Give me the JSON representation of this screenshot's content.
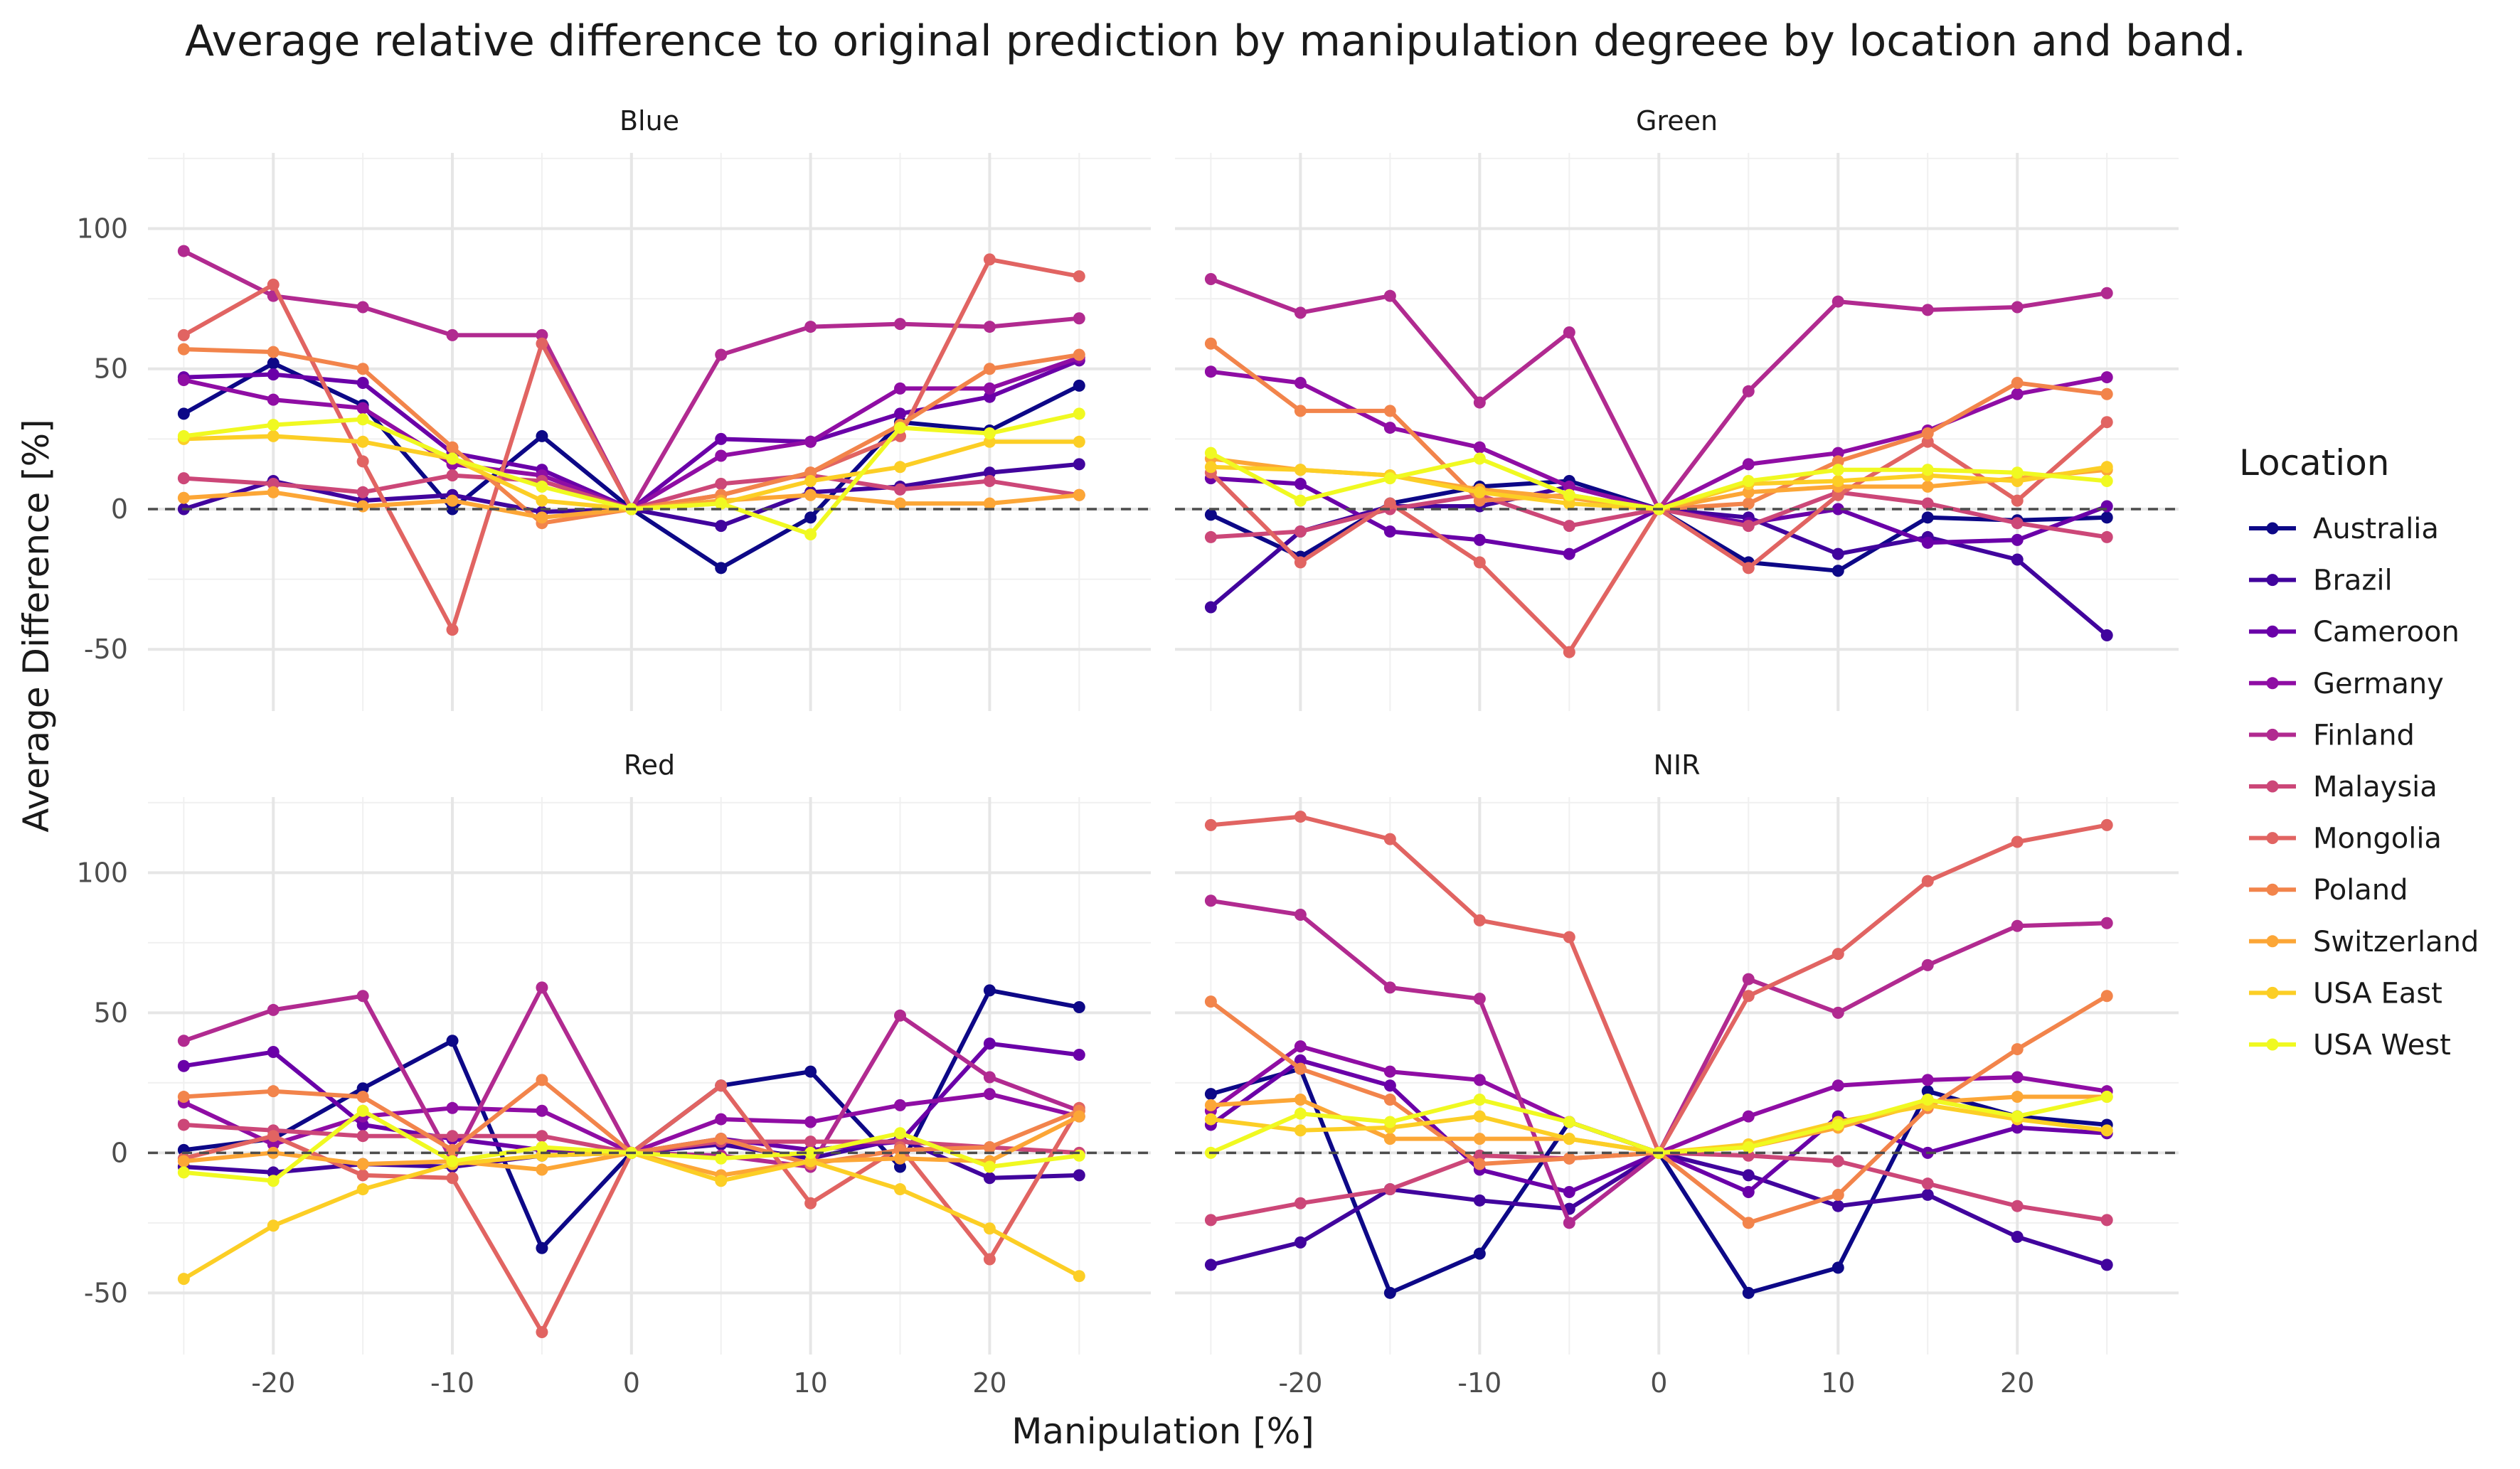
{
  "chart_data": {
    "type": "line",
    "title": "Average relative difference to original prediction by manipulation degreee by location and band.",
    "xlabel": "Manipulation [%]",
    "ylabel": "Average Difference [%]",
    "xlim": [
      -27,
      29
    ],
    "ylim": [
      -72,
      127
    ],
    "x": [
      -25,
      -20,
      -15,
      -10,
      -5,
      0,
      5,
      10,
      15,
      20,
      25
    ],
    "x_ticks": [
      -20,
      -10,
      0,
      10,
      20
    ],
    "x_tick_labels": [
      "-20",
      "-10",
      "0",
      "10",
      "20"
    ],
    "y_ticks": [
      100,
      50,
      0,
      -50
    ],
    "y_tick_labels": [
      "100",
      "50",
      "0",
      "-50"
    ],
    "reference_line": 0,
    "grid": true,
    "legend_title": "Location",
    "legend_position": "right",
    "locations": [
      "Australia",
      "Brazil",
      "Cameroon",
      "Germany",
      "Finland",
      "Malaysia",
      "Mongolia",
      "Poland",
      "Switzerland",
      "USA East",
      "USA West"
    ],
    "colors": [
      "#0d0887",
      "#41049d",
      "#6a00a8",
      "#8f0da4",
      "#b12a90",
      "#cc4778",
      "#e16462",
      "#f2844b",
      "#fca636",
      "#fcce25",
      "#f0f921"
    ],
    "facets": [
      {
        "name": "Blue",
        "series": [
          {
            "name": "Australia",
            "values": [
              34,
              52,
              37,
              0,
              26,
              0,
              -21,
              -3,
              31,
              28,
              44
            ]
          },
          {
            "name": "Brazil",
            "values": [
              0,
              10,
              3,
              5,
              -1,
              0,
              -6,
              6,
              8,
              13,
              16
            ]
          },
          {
            "name": "Cameroon",
            "values": [
              47,
              48,
              45,
              20,
              14,
              0,
              25,
              24,
              34,
              40,
              53
            ]
          },
          {
            "name": "Germany",
            "values": [
              46,
              39,
              36,
              16,
              12,
              0,
              19,
              24,
              43,
              43,
              54
            ]
          },
          {
            "name": "Finland",
            "values": [
              92,
              76,
              72,
              62,
              62,
              0,
              55,
              65,
              66,
              65,
              68
            ]
          },
          {
            "name": "Malaysia",
            "values": [
              11,
              9,
              6,
              12,
              10,
              0,
              9,
              12,
              7,
              10,
              5
            ]
          },
          {
            "name": "Mongolia",
            "values": [
              62,
              80,
              17,
              -43,
              59,
              0,
              5,
              13,
              26,
              89,
              83
            ]
          },
          {
            "name": "Poland",
            "values": [
              57,
              56,
              50,
              22,
              -5,
              0,
              5,
              13,
              30,
              50,
              55
            ]
          },
          {
            "name": "Switzerland",
            "values": [
              4,
              6,
              1,
              3,
              -3,
              0,
              3,
              5,
              2,
              2,
              5
            ]
          },
          {
            "name": "USA East",
            "values": [
              25,
              26,
              24,
              18,
              3,
              0,
              2,
              10,
              15,
              24,
              24
            ]
          },
          {
            "name": "USA West",
            "values": [
              26,
              30,
              32,
              18,
              8,
              0,
              2,
              -9,
              29,
              27,
              34
            ]
          }
        ]
      },
      {
        "name": "Green",
        "series": [
          {
            "name": "Australia",
            "values": [
              -2,
              -17,
              2,
              8,
              10,
              0,
              -19,
              -22,
              -3,
              -4,
              -3
            ]
          },
          {
            "name": "Brazil",
            "values": [
              -35,
              -8,
              1,
              1,
              8,
              0,
              -3,
              -16,
              -10,
              -18,
              -45
            ]
          },
          {
            "name": "Cameroon",
            "values": [
              11,
              9,
              -8,
              -11,
              -16,
              0,
              -5,
              0,
              -12,
              -11,
              1
            ]
          },
          {
            "name": "Germany",
            "values": [
              49,
              45,
              29,
              22,
              8,
              0,
              16,
              20,
              28,
              41,
              47
            ]
          },
          {
            "name": "Finland",
            "values": [
              82,
              70,
              76,
              38,
              63,
              0,
              42,
              74,
              71,
              72,
              77
            ]
          },
          {
            "name": "Malaysia",
            "values": [
              -10,
              -8,
              0,
              5,
              -6,
              0,
              -6,
              6,
              2,
              -5,
              -10
            ]
          },
          {
            "name": "Mongolia",
            "values": [
              13,
              -19,
              2,
              -19,
              -51,
              0,
              -21,
              5,
              24,
              3,
              31
            ]
          },
          {
            "name": "Poland",
            "values": [
              59,
              35,
              35,
              3,
              5,
              0,
              2,
              17,
              27,
              45,
              41
            ]
          },
          {
            "name": "Switzerland",
            "values": [
              18,
              14,
              12,
              7,
              4,
              0,
              6,
              8,
              8,
              11,
              14
            ]
          },
          {
            "name": "USA East",
            "values": [
              15,
              14,
              12,
              6,
              2,
              0,
              9,
              10,
              12,
              10,
              15
            ]
          },
          {
            "name": "USA West",
            "values": [
              20,
              3,
              11,
              18,
              5,
              0,
              10,
              14,
              14,
              13,
              10
            ]
          }
        ]
      },
      {
        "name": "Red",
        "series": [
          {
            "name": "Australia",
            "values": [
              1,
              5,
              23,
              40,
              -34,
              0,
              24,
              29,
              -5,
              58,
              52
            ]
          },
          {
            "name": "Brazil",
            "values": [
              -5,
              -7,
              -4,
              -5,
              -1,
              0,
              3,
              -2,
              5,
              -9,
              -8
            ]
          },
          {
            "name": "Cameroon",
            "values": [
              31,
              36,
              10,
              5,
              1,
              0,
              5,
              1,
              4,
              39,
              35
            ]
          },
          {
            "name": "Germany",
            "values": [
              18,
              3,
              13,
              16,
              15,
              0,
              12,
              11,
              17,
              21,
              13
            ]
          },
          {
            "name": "Finland",
            "values": [
              40,
              51,
              56,
              -3,
              59,
              0,
              -1,
              -5,
              49,
              27,
              15
            ]
          },
          {
            "name": "Malaysia",
            "values": [
              10,
              8,
              6,
              6,
              6,
              0,
              4,
              4,
              4,
              2,
              0
            ]
          },
          {
            "name": "Mongolia",
            "values": [
              -2,
              6,
              -8,
              -9,
              -64,
              0,
              24,
              -18,
              2,
              -38,
              16
            ]
          },
          {
            "name": "Poland",
            "values": [
              20,
              22,
              20,
              1,
              26,
              0,
              5,
              -4,
              1,
              2,
              15
            ]
          },
          {
            "name": "Switzerland",
            "values": [
              -3,
              0,
              -4,
              -3,
              -6,
              0,
              -8,
              -3,
              -2,
              -3,
              13
            ]
          },
          {
            "name": "USA East",
            "values": [
              -45,
              -26,
              -13,
              -4,
              -1,
              0,
              -10,
              -3,
              -13,
              -27,
              -44
            ]
          },
          {
            "name": "USA West",
            "values": [
              -7,
              -10,
              15,
              -3,
              2,
              0,
              -2,
              0,
              7,
              -5,
              -1
            ]
          }
        ]
      },
      {
        "name": "NIR",
        "series": [
          {
            "name": "Australia",
            "values": [
              21,
              30,
              -50,
              -36,
              11,
              0,
              -50,
              -41,
              22,
              13,
              10
            ]
          },
          {
            "name": "Brazil",
            "values": [
              -40,
              -32,
              -13,
              -17,
              -20,
              0,
              -8,
              -19,
              -15,
              -30,
              -40
            ]
          },
          {
            "name": "Cameroon",
            "values": [
              10,
              33,
              24,
              -6,
              -14,
              0,
              -14,
              13,
              0,
              9,
              7
            ]
          },
          {
            "name": "Germany",
            "values": [
              15,
              38,
              29,
              26,
              11,
              0,
              13,
              24,
              26,
              27,
              22
            ]
          },
          {
            "name": "Finland",
            "values": [
              90,
              85,
              59,
              55,
              -25,
              0,
              62,
              50,
              67,
              81,
              82
            ]
          },
          {
            "name": "Malaysia",
            "values": [
              -24,
              -18,
              -13,
              -1,
              -2,
              0,
              -1,
              -3,
              -11,
              -19,
              -24
            ]
          },
          {
            "name": "Mongolia",
            "values": [
              117,
              120,
              112,
              83,
              77,
              0,
              56,
              71,
              97,
              111,
              117
            ]
          },
          {
            "name": "Poland",
            "values": [
              54,
              30,
              19,
              -4,
              -2,
              0,
              -25,
              -15,
              16,
              37,
              56
            ]
          },
          {
            "name": "Switzerland",
            "values": [
              17,
              19,
              5,
              5,
              5,
              0,
              2,
              9,
              18,
              20,
              20
            ]
          },
          {
            "name": "USA East",
            "values": [
              12,
              8,
              9,
              13,
              5,
              0,
              3,
              11,
              17,
              12,
              8
            ]
          },
          {
            "name": "USA West",
            "values": [
              0,
              14,
              11,
              19,
              11,
              0,
              2,
              10,
              19,
              13,
              20
            ]
          }
        ]
      }
    ]
  }
}
